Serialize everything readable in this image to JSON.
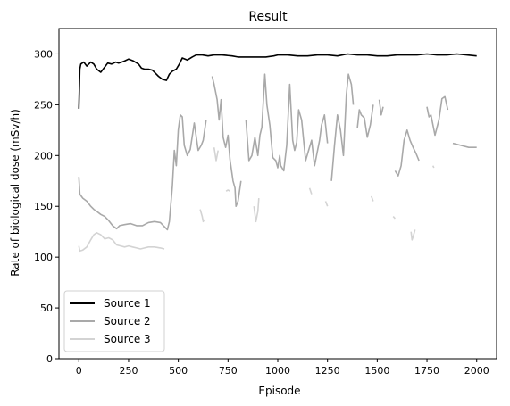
{
  "chart_data": {
    "type": "line",
    "title": "Result",
    "xlabel": "Episode",
    "ylabel": "Rate of biological dose (mSv/h)",
    "xlim": [
      -100,
      2100
    ],
    "ylim": [
      0,
      325
    ],
    "xticks": [
      0,
      250,
      500,
      750,
      1000,
      1250,
      1500,
      1750,
      2000
    ],
    "yticks": [
      0,
      50,
      100,
      150,
      200,
      250,
      300
    ],
    "grid": false,
    "legend_position": "lower-left",
    "series": [
      {
        "name": "Source 1",
        "color": "#000000",
        "segments": [
          [
            [
              0,
              246
            ],
            [
              5,
              285
            ],
            [
              10,
              290
            ],
            [
              25,
              292
            ],
            [
              40,
              288
            ],
            [
              60,
              292
            ],
            [
              75,
              290
            ],
            [
              90,
              285
            ],
            [
              110,
              282
            ],
            [
              130,
              287
            ],
            [
              145,
              291
            ],
            [
              165,
              290
            ],
            [
              185,
              292
            ],
            [
              200,
              291
            ],
            [
              215,
              292
            ],
            [
              230,
              293
            ],
            [
              250,
              295
            ],
            [
              275,
              293
            ],
            [
              300,
              290
            ],
            [
              315,
              286
            ],
            [
              330,
              285
            ],
            [
              350,
              285
            ],
            [
              370,
              284
            ],
            [
              385,
              281
            ],
            [
              400,
              278
            ],
            [
              420,
              275
            ],
            [
              440,
              274
            ],
            [
              455,
              280
            ],
            [
              470,
              283
            ],
            [
              490,
              285
            ],
            [
              505,
              290
            ],
            [
              520,
              296
            ],
            [
              545,
              294
            ],
            [
              570,
              297
            ],
            [
              590,
              299
            ],
            [
              620,
              299
            ],
            [
              650,
              298
            ],
            [
              680,
              299
            ],
            [
              720,
              299
            ],
            [
              770,
              298
            ],
            [
              800,
              297
            ],
            [
              850,
              297
            ],
            [
              900,
              297
            ],
            [
              940,
              297
            ],
            [
              980,
              298
            ],
            [
              1000,
              299
            ],
            [
              1050,
              299
            ],
            [
              1100,
              298
            ],
            [
              1150,
              298
            ],
            [
              1200,
              299
            ],
            [
              1250,
              299
            ],
            [
              1300,
              298
            ],
            [
              1350,
              300
            ],
            [
              1400,
              299
            ],
            [
              1450,
              299
            ],
            [
              1500,
              298
            ],
            [
              1550,
              298
            ],
            [
              1600,
              299
            ],
            [
              1650,
              299
            ],
            [
              1700,
              299
            ],
            [
              1750,
              300
            ],
            [
              1800,
              299
            ],
            [
              1850,
              299
            ],
            [
              1900,
              300
            ],
            [
              1950,
              299
            ],
            [
              2000,
              298
            ]
          ]
        ]
      },
      {
        "name": "Source 2",
        "color": "#a9a9a9",
        "segments": [
          [
            [
              0,
              179
            ],
            [
              5,
              162
            ],
            [
              20,
              158
            ],
            [
              40,
              155
            ],
            [
              60,
              150
            ],
            [
              75,
              147
            ],
            [
              90,
              145
            ],
            [
              110,
              142
            ],
            [
              130,
              140
            ],
            [
              150,
              136
            ],
            [
              170,
              131
            ],
            [
              190,
              128
            ],
            [
              205,
              131
            ],
            [
              230,
              132
            ],
            [
              260,
              133
            ],
            [
              290,
              131
            ],
            [
              320,
              131
            ],
            [
              350,
              134
            ],
            [
              380,
              135
            ],
            [
              410,
              134
            ],
            [
              430,
              130
            ],
            [
              445,
              127
            ],
            [
              455,
              135
            ],
            [
              470,
              170
            ],
            [
              480,
              205
            ],
            [
              490,
              190
            ],
            [
              500,
              225
            ],
            [
              510,
              240
            ],
            [
              520,
              238
            ],
            [
              530,
              210
            ],
            [
              545,
              200
            ],
            [
              560,
              206
            ],
            [
              580,
              232
            ],
            [
              600,
              205
            ],
            [
              615,
              210
            ],
            [
              625,
              215
            ],
            [
              640,
              235
            ]
          ],
          [
            [
              670,
              278
            ],
            [
              680,
              270
            ],
            [
              695,
              255
            ],
            [
              705,
              235
            ],
            [
              715,
              255
            ],
            [
              725,
              218
            ],
            [
              738,
              208
            ],
            [
              750,
              220
            ],
            [
              760,
              196
            ],
            [
              775,
              175
            ],
            [
              785,
              168
            ],
            [
              790,
              150
            ],
            [
              800,
              155
            ],
            [
              815,
              175
            ]
          ],
          [
            [
              840,
              235
            ],
            [
              855,
              195
            ],
            [
              870,
              200
            ],
            [
              885,
              218
            ],
            [
              900,
              200
            ],
            [
              910,
              220
            ],
            [
              920,
              228
            ],
            [
              935,
              280
            ],
            [
              945,
              250
            ],
            [
              960,
              230
            ],
            [
              975,
              198
            ],
            [
              990,
              195
            ],
            [
              1000,
              188
            ],
            [
              1010,
              200
            ],
            [
              1015,
              190
            ],
            [
              1030,
              185
            ],
            [
              1045,
              210
            ],
            [
              1060,
              270
            ],
            [
              1075,
              215
            ],
            [
              1085,
              205
            ],
            [
              1095,
              213
            ],
            [
              1105,
              245
            ],
            [
              1120,
              235
            ],
            [
              1140,
              195
            ],
            [
              1155,
              205
            ],
            [
              1170,
              215
            ],
            [
              1185,
              190
            ],
            [
              1195,
              200
            ],
            [
              1210,
              215
            ],
            [
              1220,
              230
            ],
            [
              1235,
              240
            ],
            [
              1250,
              212
            ]
          ],
          [
            [
              1270,
              175
            ],
            [
              1285,
              210
            ],
            [
              1300,
              240
            ],
            [
              1315,
              225
            ],
            [
              1330,
              200
            ],
            [
              1345,
              260
            ],
            [
              1355,
              280
            ],
            [
              1370,
              270
            ],
            [
              1380,
              250
            ]
          ],
          [
            [
              1400,
              227
            ],
            [
              1410,
              245
            ],
            [
              1420,
              240
            ],
            [
              1435,
              237
            ],
            [
              1450,
              218
            ],
            [
              1465,
              230
            ],
            [
              1480,
              250
            ]
          ],
          [
            [
              1510,
              255
            ],
            [
              1520,
              240
            ],
            [
              1530,
              248
            ]
          ],
          [
            [
              1590,
              185
            ],
            [
              1605,
              180
            ],
            [
              1620,
              190
            ],
            [
              1635,
              215
            ],
            [
              1650,
              225
            ],
            [
              1665,
              215
            ],
            [
              1680,
              208
            ],
            [
              1695,
              202
            ],
            [
              1710,
              195
            ]
          ],
          [
            [
              1750,
              248
            ],
            [
              1760,
              238
            ],
            [
              1770,
              240
            ],
            [
              1790,
              220
            ],
            [
              1810,
              235
            ],
            [
              1825,
              256
            ],
            [
              1840,
              258
            ],
            [
              1855,
              245
            ]
          ],
          [
            [
              1880,
              212
            ],
            [
              1920,
              210
            ],
            [
              1960,
              208
            ],
            [
              2000,
              208
            ]
          ]
        ]
      },
      {
        "name": "Source 3",
        "color": "#d3d3d3",
        "segments": [
          [
            [
              0,
              111
            ],
            [
              5,
              106
            ],
            [
              20,
              107
            ],
            [
              40,
              110
            ],
            [
              60,
              117
            ],
            [
              75,
              122
            ],
            [
              90,
              124
            ],
            [
              110,
              122
            ],
            [
              130,
              118
            ],
            [
              150,
              119
            ],
            [
              170,
              117
            ],
            [
              190,
              112
            ],
            [
              210,
              111
            ],
            [
              230,
              110
            ],
            [
              250,
              111
            ],
            [
              270,
              110
            ],
            [
              290,
              109
            ],
            [
              310,
              108
            ],
            [
              330,
              109
            ],
            [
              350,
              110
            ],
            [
              380,
              110
            ],
            [
              410,
              109
            ],
            [
              430,
              108
            ]
          ],
          [
            [
              610,
              147
            ],
            [
              620,
              140
            ],
            [
              625,
              135
            ],
            [
              630,
              137
            ]
          ],
          [
            [
              680,
              208
            ],
            [
              690,
              195
            ],
            [
              700,
              205
            ]
          ],
          [
            [
              740,
              165
            ],
            [
              750,
              166
            ],
            [
              760,
              165
            ]
          ],
          [
            [
              880,
              150
            ],
            [
              890,
              135
            ],
            [
              900,
              145
            ],
            [
              905,
              158
            ]
          ],
          [
            [
              1160,
              168
            ],
            [
              1170,
              162
            ]
          ],
          [
            [
              1240,
              155
            ],
            [
              1250,
              150
            ]
          ],
          [
            [
              1470,
              160
            ],
            [
              1480,
              155
            ]
          ],
          [
            [
              1580,
              140
            ],
            [
              1590,
              138
            ]
          ],
          [
            [
              1670,
              125
            ],
            [
              1675,
              117
            ],
            [
              1680,
              120
            ],
            [
              1690,
              127
            ]
          ],
          [
            [
              1780,
              190
            ],
            [
              1785,
              188
            ]
          ]
        ]
      }
    ]
  }
}
